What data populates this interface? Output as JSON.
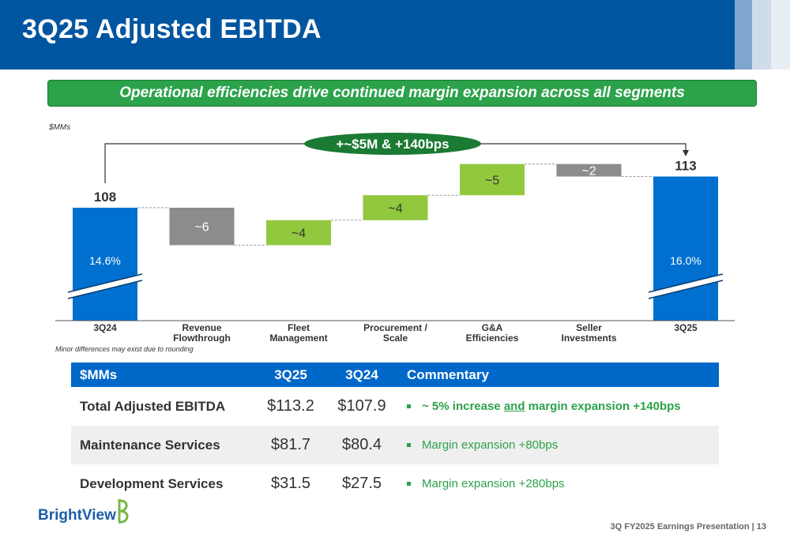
{
  "header": {
    "title": "3Q25 Adjusted EBITDA"
  },
  "banner": {
    "text": "Operational efficiencies drive continued margin expansion across all segments"
  },
  "units_label": "$MMs",
  "chart_data": {
    "type": "bar",
    "subtype": "waterfall",
    "categories": [
      "3Q24",
      "Revenue\nFlowthrough",
      "Fleet\nManagement",
      "Procurement /\nScale",
      "G&A\nEfficiencies",
      "Seller\nInvestments",
      "3Q25"
    ],
    "category_lines": [
      [
        "3Q24"
      ],
      [
        "Revenue",
        "Flowthrough"
      ],
      [
        "Fleet",
        "Management"
      ],
      [
        "Procurement /",
        "Scale"
      ],
      [
        "G&A",
        "Efficiencies"
      ],
      [
        "Seller",
        "Investments"
      ],
      [
        "3Q25"
      ]
    ],
    "values": [
      108,
      -6,
      4,
      4,
      5,
      -2,
      113
    ],
    "kinds": [
      "total",
      "decrease",
      "increase",
      "increase",
      "increase",
      "decrease",
      "total"
    ],
    "labels": [
      "108",
      "~6",
      "~4",
      "~4",
      "~5",
      "~2",
      "113"
    ],
    "margins": {
      "3Q24": "14.6%",
      "3Q25": "16.0%"
    },
    "callout": "+~$5M & +140bps",
    "axis_break": true,
    "colors": {
      "total": "#0070d0",
      "increase": "#92c83e",
      "decrease": "#8c8c8c",
      "callout": "#1b7a33"
    }
  },
  "rounding_note": "Minor differences may exist  due to rounding",
  "table": {
    "headers": [
      "$MMs",
      "3Q25",
      "3Q24",
      "Commentary"
    ],
    "rows": [
      {
        "name": "Total Adjusted EBITDA",
        "q25": "$113.2",
        "q24": "$107.9",
        "comment_a": "~ 5% increase ",
        "comment_b": "and",
        "comment_c": " margin expansion +140bps"
      },
      {
        "name": "Maintenance Services",
        "q25": "$81.7",
        "q24": "$80.4",
        "comment": "Margin expansion +80bps"
      },
      {
        "name": "Development Services",
        "q25": "$31.5",
        "q24": "$27.5",
        "comment": "Margin expansion +280bps"
      }
    ]
  },
  "logo": {
    "text": "BrightView"
  },
  "footer": {
    "text": "3Q FY2025 Earnings Presentation | 13"
  }
}
